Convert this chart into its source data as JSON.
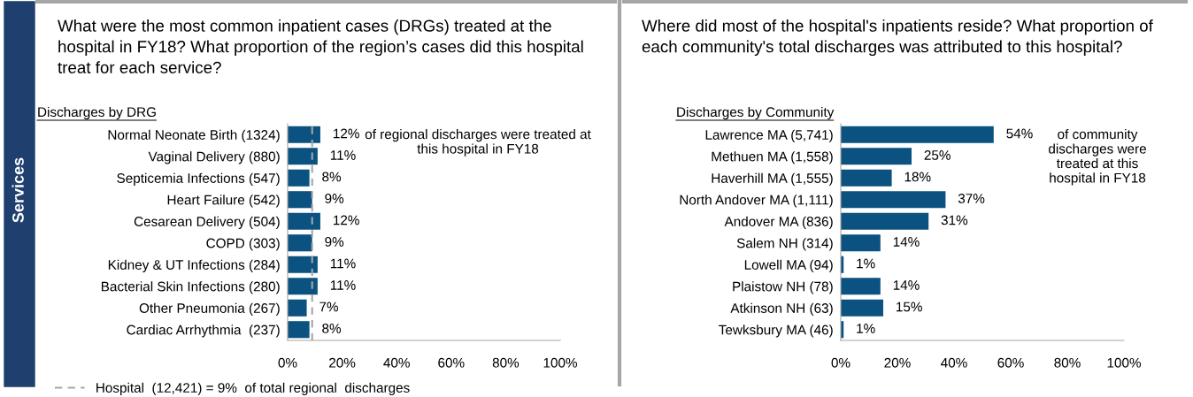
{
  "chart_data": [
    {
      "type": "bar",
      "orientation": "horizontal",
      "title": "What were the most common inpatient cases (DRGs) treated at the hospital in FY18? What proportion of the region’s cases did this hospital treat for each service?",
      "subtitle": "Discharges by DRG",
      "categories": [
        "Normal Neonate Birth (1324)",
        "Vaginal Delivery (880)",
        "Septicemia Infections (547)",
        "Heart Failure (542)",
        "Cesarean Delivery (504)",
        "COPD (303)",
        "Kidney & UT Infections (284)",
        "Bacterial Skin Infections (280)",
        "Other Pneumonia (267)",
        "Cardiac Arrhythmia  (237)"
      ],
      "values": [
        12,
        11,
        8,
        9,
        12,
        9,
        11,
        11,
        7,
        8
      ],
      "value_labels": [
        "12%",
        "11%",
        "8%",
        "9%",
        "12%",
        "9%",
        "11%",
        "11%",
        "7%",
        "8%"
      ],
      "color": "#0b5281",
      "xlim": [
        0,
        100
      ],
      "xticks": [
        {
          "value": 0,
          "label": "0%"
        },
        {
          "value": 20,
          "label": "20%"
        },
        {
          "value": 40,
          "label": "40%"
        },
        {
          "value": 60,
          "label": "60%"
        },
        {
          "value": 80,
          "label": "80%"
        },
        {
          "value": 100,
          "label": "100%"
        }
      ],
      "ref_lines": [
        {
          "axis": "x",
          "value": 9,
          "label": "Hospital  (12,421) = 9%  of total regional  discharges",
          "color": "#a6a6a6",
          "line_style": "dashed"
        }
      ],
      "annotations": [
        "of regional discharges were treated at this hospital in FY18",
        "Services"
      ],
      "grid": false,
      "legend": "bottom left"
    },
    {
      "type": "bar",
      "orientation": "horizontal",
      "title": "Where did most of the hospital's inpatients reside? What proportion of each community's total discharges was attributed to this hospital?",
      "subtitle": "Discharges by Community",
      "categories": [
        "Lawrence MA (5,741)",
        "Methuen MA (1,558)",
        "Haverhill MA (1,555)",
        "North Andover MA (1,111)",
        "Andover MA (836)",
        "Salem NH (314)",
        "Lowell MA (94)",
        "Plaistow NH (78)",
        "Atkinson NH (63)",
        "Tewksbury MA (46)"
      ],
      "values": [
        54,
        25,
        18,
        37,
        31,
        14,
        1,
        14,
        15,
        1
      ],
      "value_labels": [
        "54%",
        "25%",
        "18%",
        "37%",
        "31%",
        "14%",
        "1%",
        "14%",
        "15%",
        "1%"
      ],
      "color": "#0b5281",
      "xlim": [
        0,
        100
      ],
      "xticks": [
        {
          "value": 0,
          "label": "0%"
        },
        {
          "value": 20,
          "label": "20%"
        },
        {
          "value": 40,
          "label": "40%"
        },
        {
          "value": 60,
          "label": "60%"
        },
        {
          "value": 80,
          "label": "80%"
        },
        {
          "value": 100,
          "label": "100%"
        }
      ],
      "annotations": [
        "of community discharges were treated at this hospital in FY18"
      ],
      "grid": false,
      "legend": false
    }
  ]
}
